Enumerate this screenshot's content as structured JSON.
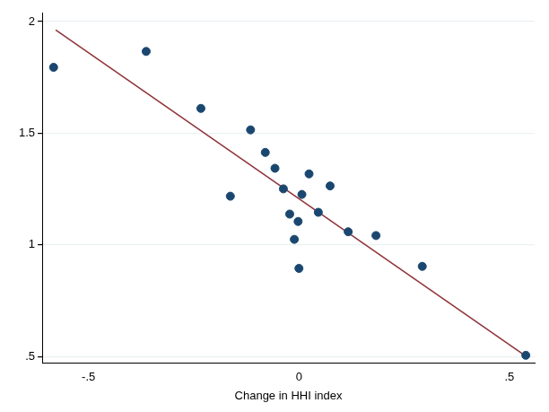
{
  "chart_data": {
    "type": "scatter",
    "x_label": "Change in HHI index",
    "xlim": [
      -0.61,
      0.56
    ],
    "ylim": [
      0.47,
      2.04
    ],
    "xticks": [
      {
        "value": -0.5,
        "label": "-.5"
      },
      0,
      {
        "value": 0.5,
        "label": ".5"
      }
    ],
    "yticks": [
      {
        "value": 0.5,
        "label": ".5"
      },
      1,
      1.5,
      2
    ],
    "grid": "y",
    "series": [
      {
        "type": "scatter",
        "color": "#1a476f",
        "marker": "circle",
        "x": [
          -0.583,
          -0.363,
          -0.233,
          -0.163,
          -0.115,
          -0.08,
          -0.057,
          -0.037,
          -0.022,
          -0.011,
          -0.002,
          0.0,
          0.007,
          0.024,
          0.046,
          0.074,
          0.117,
          0.183,
          0.293,
          0.539
        ],
        "values": [
          1.795,
          1.866,
          1.611,
          1.218,
          1.515,
          1.414,
          1.343,
          1.251,
          1.138,
          1.025,
          1.105,
          0.895,
          1.226,
          1.318,
          1.146,
          1.264,
          1.059,
          1.042,
          0.904,
          0.506
        ]
      },
      {
        "type": "line",
        "color": "#90353b",
        "line_style": "solid",
        "x": [
          -0.578,
          0.541
        ],
        "values": [
          1.962,
          0.5
        ]
      }
    ]
  }
}
